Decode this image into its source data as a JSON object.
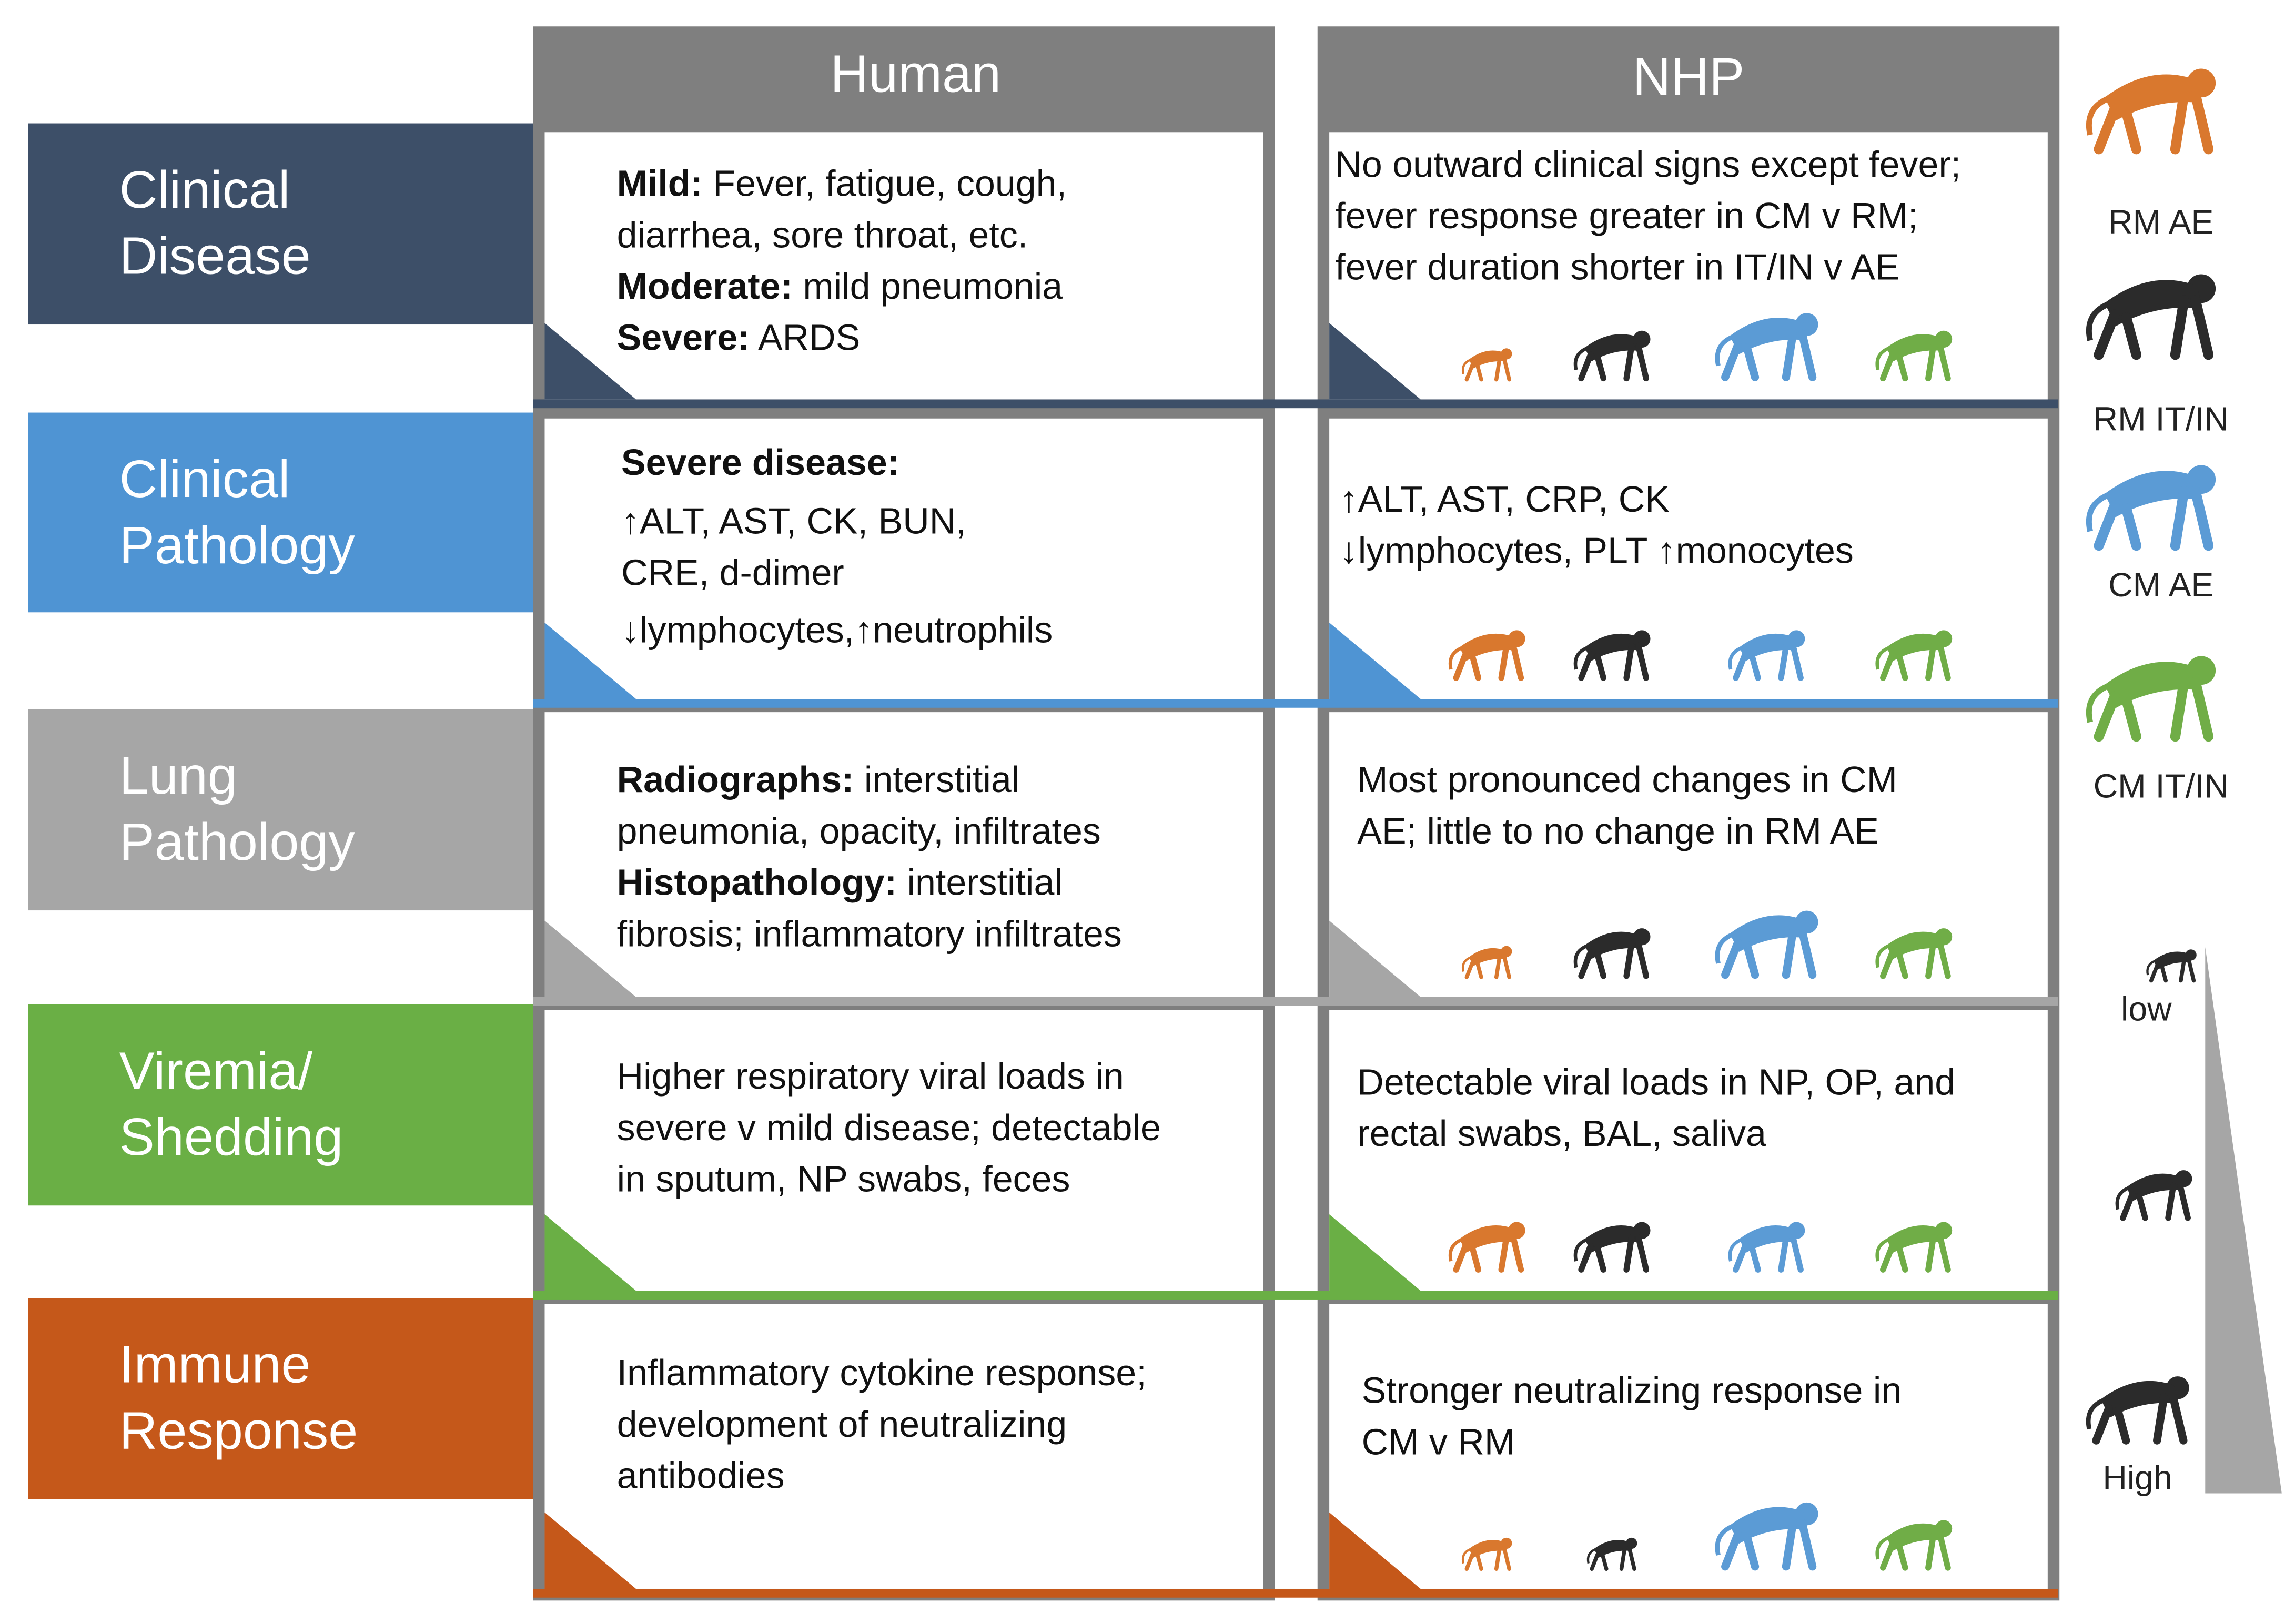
{
  "columns": [
    "Human",
    "NHP"
  ],
  "rows": [
    {
      "label": [
        "Clinical",
        "Disease"
      ],
      "human": [
        [
          {
            "bold": "Mild:"
          },
          {
            "text": " Fever, fatigue, cough,"
          }
        ],
        [
          {
            "text": "diarrhea, sore throat, etc."
          }
        ],
        [
          {
            "bold": "Moderate:"
          },
          {
            "text": " mild pneumonia"
          }
        ],
        [
          {
            "bold": "Severe:"
          },
          {
            "text": " ARDS"
          }
        ]
      ],
      "nhp": [
        [
          {
            "text": "No outward clinical signs except fever;"
          }
        ],
        [
          {
            "text": "fever response greater in CM v RM;"
          }
        ],
        [
          {
            "text": "fever duration shorter in IT/IN v AE"
          }
        ]
      ]
    },
    {
      "label": [
        "Clinical",
        "Pathology"
      ],
      "human": [
        [
          {
            "bold": "Severe disease:"
          }
        ],
        [
          {
            "text": "↑ALT, AST, CK, BUN,"
          }
        ],
        [
          {
            "text": " CRE, d-dimer"
          }
        ],
        [
          {
            "text": "↓lymphocytes,↑neutrophils"
          }
        ]
      ],
      "nhp": [
        [
          {
            "text": "↑ALT, AST, CRP, CK"
          }
        ],
        [
          {
            "text": "↓lymphocytes, PLT ↑monocytes"
          }
        ]
      ]
    },
    {
      "label": [
        "Lung",
        "Pathology"
      ],
      "human": [
        [
          {
            "bold": "Radiographs:"
          },
          {
            "text": " interstitial"
          }
        ],
        [
          {
            "text": "pneumonia, opacity, infiltrates"
          }
        ],
        [
          {
            "bold": "Histopathology:"
          },
          {
            "text": " interstitial"
          }
        ],
        [
          {
            "text": "fibrosis; inflammatory infiltrates"
          }
        ]
      ],
      "nhp": [
        [
          {
            "text": "Most pronounced changes in CM"
          }
        ],
        [
          {
            "text": "AE; little to no change in RM AE"
          }
        ]
      ]
    },
    {
      "label": [
        "Viremia/",
        "Shedding"
      ],
      "human": [
        [
          {
            "text": "Higher respiratory viral loads in"
          }
        ],
        [
          {
            "text": "severe v mild disease; detectable"
          }
        ],
        [
          {
            "text": "in sputum, NP swabs, feces"
          }
        ]
      ],
      "nhp": [
        [
          {
            "text": "Detectable viral loads in NP, OP, and"
          }
        ],
        [
          {
            "text": "rectal swabs, BAL, saliva"
          }
        ]
      ]
    },
    {
      "label": [
        "Immune",
        "Response"
      ],
      "human": [
        [
          {
            "text": "Inflammatory cytokine response;"
          }
        ],
        [
          {
            "text": "development of neutralizing"
          }
        ],
        [
          {
            "text": "antibodies"
          }
        ]
      ],
      "nhp": [
        [
          {
            "text": "Stronger neutralizing response in"
          }
        ],
        [
          {
            "text": "CM v RM"
          }
        ]
      ]
    }
  ],
  "legend": {
    "species": [
      "RM AE",
      "RM IT/IN",
      "CM AE",
      "CM IT/IN"
    ],
    "scale_low": "low",
    "scale_high": "High"
  }
}
